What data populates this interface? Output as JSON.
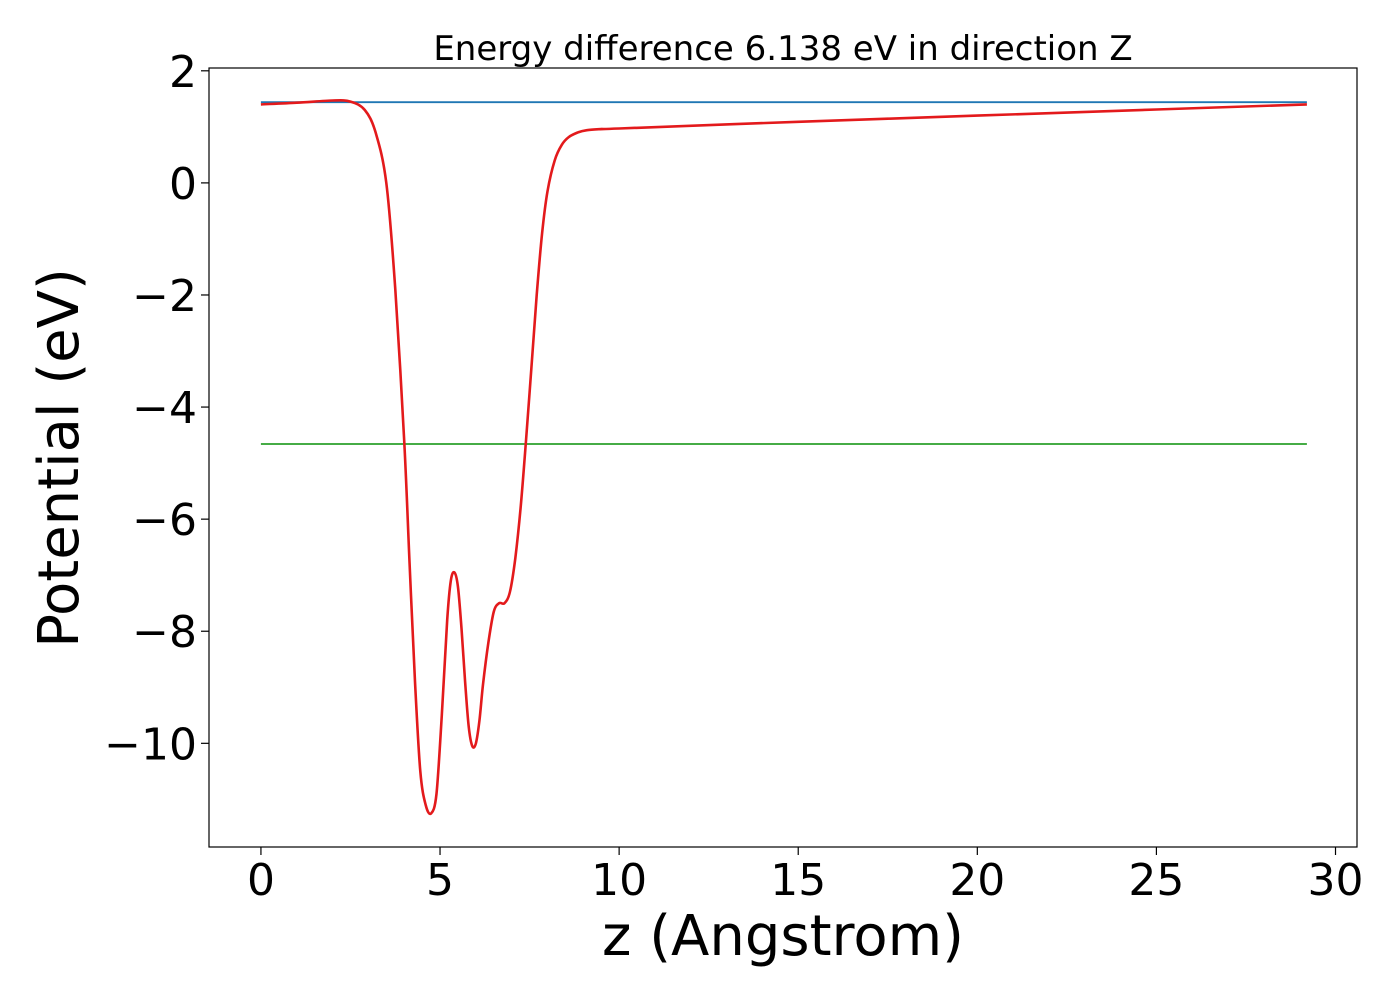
{
  "chart_data": {
    "type": "line",
    "title": "Energy difference 6.138 eV in direction Z",
    "xlabel": "z (Angstrom)",
    "ylabel": "Potential (eV)",
    "xlim": [
      -1.45,
      30.6
    ],
    "ylim": [
      -11.85,
      2.05
    ],
    "xticks": [
      0,
      5,
      10,
      15,
      20,
      25,
      30
    ],
    "xtick_labels": [
      "0",
      "5",
      "10",
      "15",
      "20",
      "25",
      "30"
    ],
    "yticks": [
      2,
      0,
      -2,
      -4,
      -6,
      -8,
      -10
    ],
    "ytick_labels": [
      "2",
      "0",
      "−2",
      "−4",
      "−6",
      "−8",
      "−10"
    ],
    "grid": false,
    "series": [
      {
        "color": "#1f77b4",
        "x": [
          0,
          29.2
        ],
        "y": [
          1.44,
          1.44
        ]
      },
      {
        "color": "#2ca02c",
        "x": [
          0,
          29.2
        ],
        "y": [
          -4.66,
          -4.66
        ]
      },
      {
        "color": "#e31a1c",
        "x": [
          0,
          1.0,
          2.0,
          2.5,
          2.9,
          3.2,
          3.5,
          3.75,
          4.0,
          4.15,
          4.3,
          4.45,
          4.6,
          4.75,
          4.9,
          5.05,
          5.2,
          5.3,
          5.4,
          5.5,
          5.6,
          5.7,
          5.8,
          5.9,
          6.0,
          6.1,
          6.2,
          6.35,
          6.5,
          6.65,
          6.8,
          6.95,
          7.1,
          7.25,
          7.4,
          7.55,
          7.7,
          7.85,
          8.0,
          8.2,
          8.4,
          8.6,
          8.85,
          9.1,
          9.5,
          10.0,
          15.0,
          20.0,
          25.0,
          29.2
        ],
        "y": [
          1.4,
          1.43,
          1.47,
          1.45,
          1.3,
          0.9,
          0.0,
          -1.9,
          -4.6,
          -6.8,
          -8.9,
          -10.5,
          -11.1,
          -11.25,
          -10.9,
          -9.5,
          -7.8,
          -7.1,
          -6.95,
          -7.2,
          -7.95,
          -8.9,
          -9.7,
          -10.05,
          -10.0,
          -9.6,
          -8.95,
          -8.2,
          -7.65,
          -7.5,
          -7.5,
          -7.3,
          -6.7,
          -5.8,
          -4.6,
          -3.3,
          -2.0,
          -0.9,
          -0.15,
          0.4,
          0.68,
          0.82,
          0.9,
          0.94,
          0.96,
          0.97,
          1.09,
          1.2,
          1.31,
          1.4
        ]
      }
    ]
  }
}
